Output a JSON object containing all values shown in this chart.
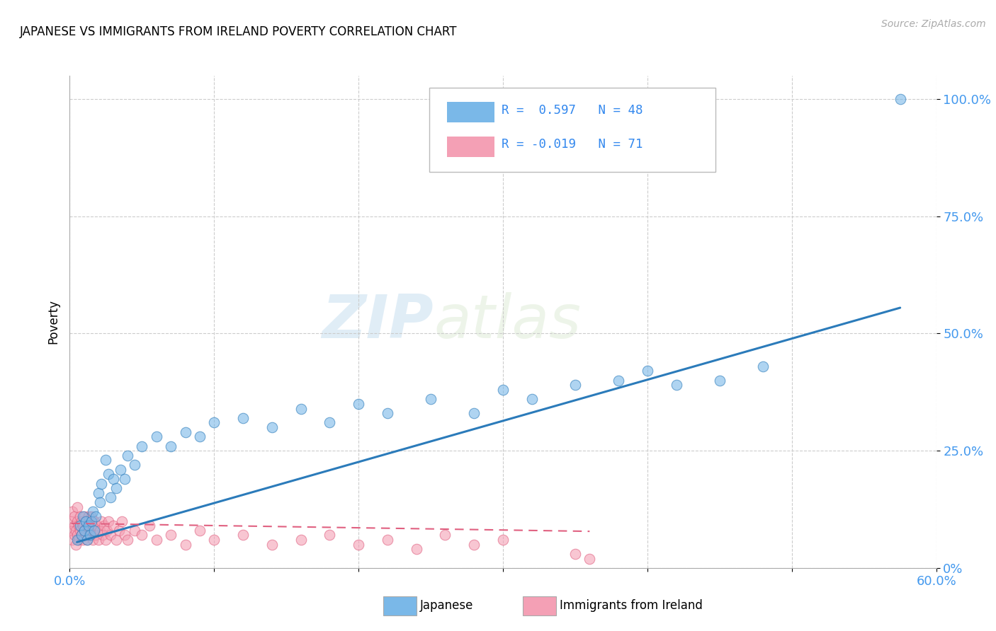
{
  "title": "JAPANESE VS IMMIGRANTS FROM IRELAND POVERTY CORRELATION CHART",
  "source_text": "Source: ZipAtlas.com",
  "ylabel": "Poverty",
  "xlim": [
    0.0,
    0.6
  ],
  "ylim": [
    0.0,
    1.05
  ],
  "ytick_positions": [
    0.0,
    0.25,
    0.5,
    0.75,
    1.0
  ],
  "ytick_labels": [
    "0%",
    "25.0%",
    "50.0%",
    "75.0%",
    "100.0%"
  ],
  "xtick_positions": [
    0.0,
    0.1,
    0.2,
    0.3,
    0.4,
    0.5,
    0.6
  ],
  "xtick_labels": [
    "0.0%",
    "",
    "",
    "",
    "",
    "",
    "60.0%"
  ],
  "legend_line1": "R =  0.597   N = 48",
  "legend_line2": "R = -0.019   N = 71",
  "blue_color": "#7ab8e8",
  "pink_color": "#f4a0b5",
  "trend_blue": "#2b7bba",
  "trend_pink": "#e06080",
  "watermark_zip": "ZIP",
  "watermark_atlas": "atlas",
  "japanese_x": [
    0.005,
    0.007,
    0.008,
    0.009,
    0.01,
    0.011,
    0.012,
    0.013,
    0.014,
    0.015,
    0.016,
    0.017,
    0.018,
    0.02,
    0.021,
    0.022,
    0.025,
    0.027,
    0.028,
    0.03,
    0.032,
    0.035,
    0.038,
    0.04,
    0.045,
    0.05,
    0.06,
    0.07,
    0.08,
    0.09,
    0.1,
    0.12,
    0.14,
    0.16,
    0.18,
    0.2,
    0.22,
    0.25,
    0.28,
    0.3,
    0.32,
    0.35,
    0.38,
    0.4,
    0.42,
    0.45,
    0.48,
    0.575
  ],
  "japanese_y": [
    0.06,
    0.09,
    0.07,
    0.11,
    0.08,
    0.1,
    0.06,
    0.09,
    0.07,
    0.1,
    0.12,
    0.08,
    0.11,
    0.16,
    0.14,
    0.18,
    0.23,
    0.2,
    0.15,
    0.19,
    0.17,
    0.21,
    0.19,
    0.24,
    0.22,
    0.26,
    0.28,
    0.26,
    0.29,
    0.28,
    0.31,
    0.32,
    0.3,
    0.34,
    0.31,
    0.35,
    0.33,
    0.36,
    0.33,
    0.38,
    0.36,
    0.39,
    0.4,
    0.42,
    0.39,
    0.4,
    0.43,
    1.0
  ],
  "ireland_x": [
    0.001,
    0.001,
    0.002,
    0.002,
    0.003,
    0.003,
    0.003,
    0.004,
    0.004,
    0.005,
    0.005,
    0.005,
    0.006,
    0.006,
    0.007,
    0.007,
    0.008,
    0.008,
    0.009,
    0.009,
    0.01,
    0.01,
    0.011,
    0.011,
    0.012,
    0.012,
    0.013,
    0.013,
    0.014,
    0.015,
    0.015,
    0.016,
    0.016,
    0.017,
    0.018,
    0.019,
    0.02,
    0.021,
    0.022,
    0.023,
    0.024,
    0.025,
    0.026,
    0.027,
    0.028,
    0.03,
    0.032,
    0.034,
    0.036,
    0.038,
    0.04,
    0.045,
    0.05,
    0.055,
    0.06,
    0.07,
    0.08,
    0.09,
    0.1,
    0.12,
    0.14,
    0.16,
    0.18,
    0.2,
    0.22,
    0.24,
    0.26,
    0.28,
    0.3,
    0.35,
    0.36
  ],
  "ireland_y": [
    0.08,
    0.1,
    0.06,
    0.12,
    0.07,
    0.09,
    0.11,
    0.05,
    0.08,
    0.07,
    0.1,
    0.13,
    0.06,
    0.09,
    0.08,
    0.11,
    0.07,
    0.1,
    0.06,
    0.09,
    0.08,
    0.11,
    0.07,
    0.1,
    0.06,
    0.09,
    0.08,
    0.11,
    0.07,
    0.09,
    0.11,
    0.06,
    0.08,
    0.1,
    0.07,
    0.09,
    0.06,
    0.08,
    0.1,
    0.07,
    0.09,
    0.06,
    0.08,
    0.1,
    0.07,
    0.09,
    0.06,
    0.08,
    0.1,
    0.07,
    0.06,
    0.08,
    0.07,
    0.09,
    0.06,
    0.07,
    0.05,
    0.08,
    0.06,
    0.07,
    0.05,
    0.06,
    0.07,
    0.05,
    0.06,
    0.04,
    0.07,
    0.05,
    0.06,
    0.03,
    0.02
  ],
  "blue_trend_x": [
    0.005,
    0.575
  ],
  "blue_trend_y_start": 0.055,
  "blue_trend_y_end": 0.555,
  "pink_trend_x": [
    0.001,
    0.36
  ],
  "pink_trend_y_start": 0.095,
  "pink_trend_y_end": 0.078
}
